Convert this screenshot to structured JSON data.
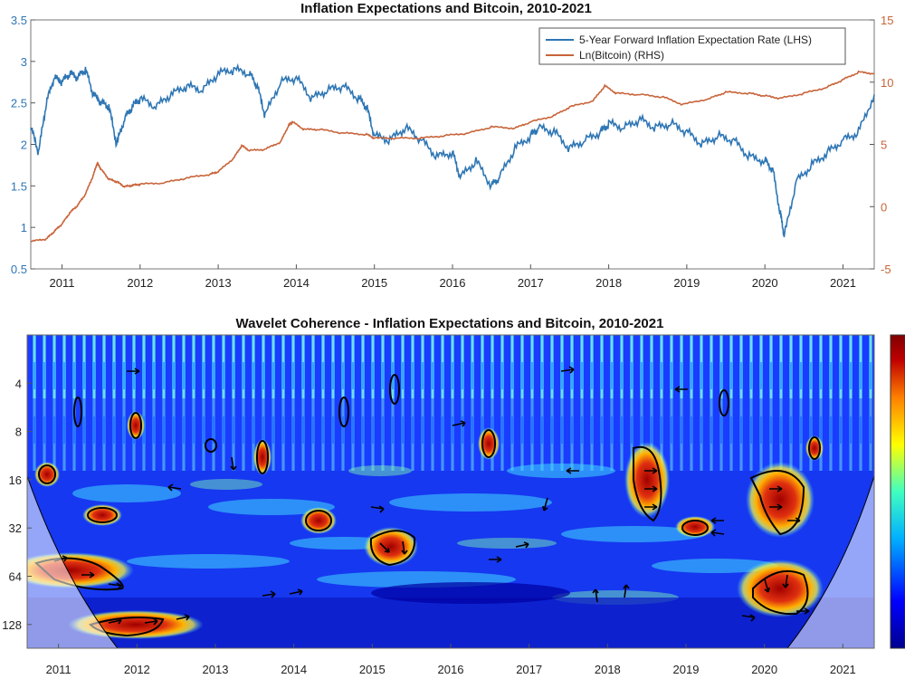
{
  "chart_data": [
    {
      "type": "line",
      "title": "Inflation Expectations and Bitcoin, 2010-2021",
      "x_ticks": [
        "2011",
        "2012",
        "2013",
        "2014",
        "2015",
        "2016",
        "2017",
        "2018",
        "2019",
        "2020",
        "2021"
      ],
      "xlim": [
        2010.6,
        2021.4
      ],
      "ylim_left": [
        0.5,
        3.5
      ],
      "yticks_left": [
        "0.5",
        "1",
        "1.5",
        "2",
        "2.5",
        "3",
        "3.5"
      ],
      "ylim_right": [
        -5,
        15
      ],
      "yticks_right": [
        "-5",
        "0",
        "5",
        "10",
        "15"
      ],
      "legend_position": "top-right",
      "colors": {
        "series_lhs": "#2e76b4",
        "series_rhs": "#c8643a"
      },
      "series": [
        {
          "name": "5-Year Forward Inflation Expectation Rate (LHS)",
          "axis": "left",
          "x": [
            2010.6,
            2010.7,
            2010.8,
            2010.9,
            2011.0,
            2011.1,
            2011.2,
            2011.3,
            2011.4,
            2011.5,
            2011.6,
            2011.7,
            2011.8,
            2011.9,
            2012.0,
            2012.2,
            2012.4,
            2012.6,
            2012.8,
            2013.0,
            2013.2,
            2013.4,
            2013.5,
            2013.6,
            2013.8,
            2014.0,
            2014.2,
            2014.4,
            2014.6,
            2014.8,
            2014.9,
            2015.0,
            2015.2,
            2015.4,
            2015.6,
            2015.8,
            2016.0,
            2016.1,
            2016.3,
            2016.5,
            2016.6,
            2016.8,
            2017.0,
            2017.1,
            2017.3,
            2017.5,
            2017.7,
            2017.9,
            2018.0,
            2018.2,
            2018.4,
            2018.6,
            2018.8,
            2019.0,
            2019.2,
            2019.4,
            2019.6,
            2019.8,
            2020.0,
            2020.1,
            2020.2,
            2020.25,
            2020.4,
            2020.6,
            2020.8,
            2021.0,
            2021.2,
            2021.4
          ],
          "y": [
            2.2,
            1.9,
            2.5,
            2.8,
            2.75,
            2.85,
            2.8,
            2.9,
            2.6,
            2.5,
            2.45,
            2.0,
            2.3,
            2.45,
            2.55,
            2.45,
            2.6,
            2.7,
            2.65,
            2.85,
            2.9,
            2.85,
            2.7,
            2.35,
            2.75,
            2.8,
            2.55,
            2.65,
            2.7,
            2.55,
            2.45,
            2.1,
            2.05,
            2.2,
            2.05,
            1.85,
            1.9,
            1.6,
            1.8,
            1.5,
            1.6,
            1.95,
            2.1,
            2.2,
            2.15,
            1.95,
            2.05,
            2.15,
            2.25,
            2.2,
            2.3,
            2.2,
            2.25,
            2.15,
            2.0,
            2.1,
            2.05,
            1.85,
            1.8,
            1.7,
            1.15,
            0.9,
            1.55,
            1.75,
            1.9,
            2.05,
            2.15,
            2.6
          ]
        },
        {
          "name": "Ln(Bitcoin) (RHS)",
          "axis": "right",
          "x": [
            2010.6,
            2010.8,
            2010.9,
            2011.0,
            2011.1,
            2011.2,
            2011.3,
            2011.4,
            2011.45,
            2011.5,
            2011.6,
            2011.7,
            2011.8,
            2011.9,
            2012.0,
            2012.3,
            2012.6,
            2012.9,
            2013.0,
            2013.2,
            2013.3,
            2013.4,
            2013.6,
            2013.8,
            2013.9,
            2013.95,
            2014.1,
            2014.3,
            2014.6,
            2014.9,
            2015.0,
            2015.3,
            2015.6,
            2015.9,
            2016.2,
            2016.5,
            2016.8,
            2017.0,
            2017.3,
            2017.5,
            2017.8,
            2017.95,
            2018.1,
            2018.4,
            2018.7,
            2018.95,
            2019.3,
            2019.5,
            2019.8,
            2020.0,
            2020.2,
            2020.5,
            2020.8,
            2021.0,
            2021.2,
            2021.4
          ],
          "y": [
            -2.8,
            -2.6,
            -2.0,
            -1.4,
            -0.5,
            0.1,
            1.0,
            2.5,
            3.5,
            3.0,
            2.2,
            2.0,
            1.6,
            1.7,
            1.8,
            1.9,
            2.3,
            2.6,
            2.8,
            3.9,
            4.9,
            4.5,
            4.6,
            5.2,
            6.5,
            6.8,
            6.2,
            6.2,
            5.9,
            5.8,
            5.5,
            5.5,
            5.5,
            5.7,
            5.9,
            6.4,
            6.3,
            6.8,
            7.3,
            8.0,
            8.5,
            9.7,
            9.1,
            9.0,
            8.8,
            8.2,
            8.7,
            9.2,
            9.1,
            8.9,
            8.7,
            9.1,
            9.6,
            10.2,
            10.8,
            10.7
          ]
        }
      ]
    },
    {
      "type": "heatmap",
      "title": "Wavelet Coherence - Inflation Expectations and Bitcoin, 2010-2021",
      "x_ticks": [
        "2011",
        "2012",
        "2013",
        "2014",
        "2015",
        "2016",
        "2017",
        "2018",
        "2019",
        "2020",
        "2021"
      ],
      "xlim": [
        2010.6,
        2021.4
      ],
      "y_ticks": [
        "4",
        "8",
        "16",
        "32",
        "64",
        "128"
      ],
      "y_scale": "log2",
      "ylim": [
        2,
        180
      ],
      "y_reversed": true,
      "colorbar": true,
      "colormap": [
        "#00008f",
        "#0000ff",
        "#00b0ff",
        "#40ffc0",
        "#ffff00",
        "#ff8000",
        "#c00000",
        "#800000"
      ],
      "high_coherence_regions": [
        {
          "x": 2011.1,
          "period": 60,
          "label": ""
        },
        {
          "x": 2011.5,
          "period": 28,
          "label": ""
        },
        {
          "x": 2011.9,
          "period": 130,
          "label": ""
        },
        {
          "x": 2014.4,
          "period": 28,
          "label": ""
        },
        {
          "x": 2015.2,
          "period": 45,
          "label": ""
        },
        {
          "x": 2018.4,
          "period": 18,
          "label": ""
        },
        {
          "x": 2019.2,
          "period": 30,
          "label": ""
        },
        {
          "x": 2019.95,
          "period": 20,
          "label": ""
        },
        {
          "x": 2020.0,
          "period": 80,
          "label": ""
        }
      ]
    }
  ]
}
